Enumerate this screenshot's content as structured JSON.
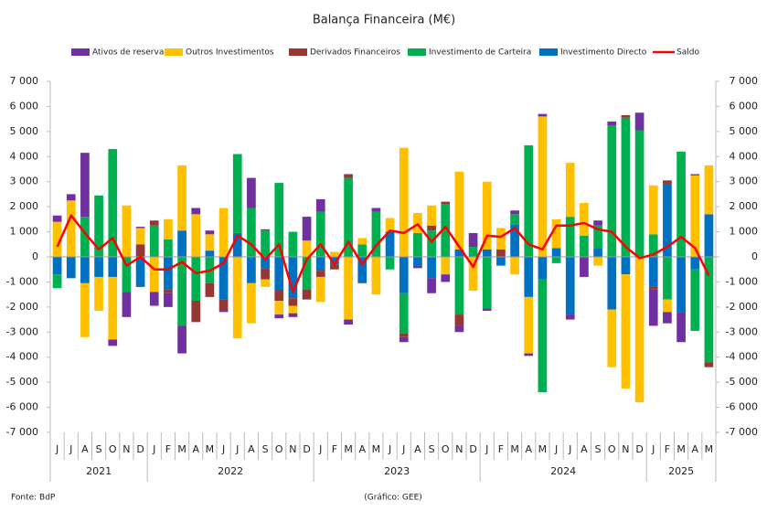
{
  "chart_data": {
    "type": "bar",
    "stacked": true,
    "title": "Balança Financeira (M€)",
    "category_groups": [
      {
        "label": "2021",
        "categories": [
          "J",
          "J",
          "A",
          "S",
          "O",
          "N",
          "D"
        ]
      },
      {
        "label": "2022",
        "categories": [
          "J",
          "F",
          "M",
          "A",
          "M",
          "J",
          "J",
          "A",
          "S",
          "O",
          "N",
          "D"
        ]
      },
      {
        "label": "2023",
        "categories": [
          "J",
          "F",
          "M",
          "A",
          "M",
          "J",
          "J",
          "A",
          "S",
          "O",
          "N",
          "D"
        ]
      },
      {
        "label": "2024",
        "categories": [
          "J",
          "F",
          "M",
          "A",
          "M",
          "J",
          "J",
          "A",
          "S",
          "O",
          "N",
          "D"
        ]
      },
      {
        "label": "2025",
        "categories": [
          "J",
          "F",
          "M",
          "A",
          "M"
        ]
      }
    ],
    "series": [
      {
        "name": "Ativos de reserva",
        "type": "bar",
        "color": "#7030a0",
        "values": [
          250,
          250,
          2550,
          0,
          -250,
          -1000,
          50,
          -550,
          -550,
          -1100,
          250,
          150,
          -50,
          0,
          1200,
          50,
          -150,
          -150,
          950,
          500,
          0,
          -200,
          0,
          150,
          0,
          -200,
          -100,
          -600,
          -300,
          -250,
          550,
          -100,
          0,
          150,
          -100,
          100,
          0,
          -200,
          -800,
          200,
          150,
          0,
          700,
          -1450,
          -450,
          -1200,
          50,
          0
        ]
      },
      {
        "name": "Outros Investimentos",
        "type": "bar",
        "color": "#ffc000",
        "values": [
          1400,
          2250,
          -2150,
          -1350,
          -2500,
          2050,
          650,
          -1400,
          800,
          2600,
          1700,
          650,
          1950,
          -3250,
          -1600,
          -300,
          -550,
          -300,
          650,
          -1000,
          200,
          -2500,
          250,
          -1500,
          550,
          4350,
          800,
          800,
          -700,
          3100,
          -1350,
          2700,
          850,
          -700,
          -2250,
          5600,
          1150,
          2150,
          1300,
          -350,
          -2300,
          -4550,
          -5800,
          1950,
          -500,
          0,
          3250,
          1950
        ]
      },
      {
        "name": "Derivados Financeiros",
        "type": "bar",
        "color": "#953735",
        "values": [
          0,
          0,
          0,
          0,
          0,
          0,
          500,
          200,
          -150,
          0,
          -850,
          -550,
          -450,
          0,
          0,
          -450,
          -400,
          -300,
          -400,
          -250,
          -200,
          150,
          0,
          0,
          0,
          -150,
          0,
          200,
          100,
          -450,
          0,
          0,
          300,
          0,
          0,
          0,
          0,
          0,
          0,
          0,
          0,
          100,
          0,
          -100,
          150,
          0,
          0,
          -200
        ]
      },
      {
        "name": "Investimento de Carteira",
        "type": "bar",
        "color": "#00b050",
        "values": [
          -550,
          0,
          1600,
          2450,
          4300,
          -1400,
          0,
          1250,
          700,
          -2750,
          -1750,
          -1050,
          0,
          3150,
          1950,
          1050,
          2950,
          1000,
          -1300,
          1800,
          0,
          3150,
          500,
          1800,
          -500,
          -1600,
          950,
          1050,
          2100,
          -2300,
          400,
          -2050,
          0,
          400,
          4450,
          -4500,
          -250,
          1600,
          850,
          900,
          5250,
          5550,
          5050,
          900,
          -1700,
          4200,
          -2450,
          -4200
        ]
      },
      {
        "name": "Investimento Directo",
        "type": "bar",
        "color": "#0070c0",
        "values": [
          -700,
          -850,
          -1050,
          -800,
          -800,
          0,
          -1200,
          0,
          -1300,
          1050,
          0,
          250,
          -1700,
          950,
          -1050,
          -450,
          -1350,
          -1650,
          0,
          -550,
          -300,
          0,
          -1050,
          0,
          1000,
          -1450,
          -350,
          -850,
          0,
          300,
          0,
          300,
          -350,
          1300,
          -1600,
          -900,
          350,
          -2300,
          0,
          350,
          -2100,
          -700,
          0,
          -1200,
          2900,
          -2200,
          -500,
          1700
        ]
      },
      {
        "name": "Saldo",
        "type": "line",
        "color": "#ff0000",
        "values": [
          400,
          1650,
          950,
          300,
          750,
          -350,
          0,
          -500,
          -500,
          -200,
          -650,
          -550,
          -250,
          850,
          500,
          -100,
          500,
          -1400,
          -100,
          500,
          -300,
          600,
          -300,
          450,
          1050,
          950,
          1300,
          600,
          1200,
          400,
          -400,
          850,
          800,
          1150,
          500,
          300,
          1250,
          1250,
          1350,
          1100,
          1000,
          400,
          -50,
          100,
          400,
          800,
          350,
          -750
        ]
      }
    ],
    "ylim": [
      -7000,
      7000
    ],
    "yticks": [
      {
        "value": -7000,
        "label": "-7 000"
      },
      {
        "value": -6000,
        "label": "-6 000"
      },
      {
        "value": -5000,
        "label": "-5 000"
      },
      {
        "value": -4000,
        "label": "-4 000"
      },
      {
        "value": -3000,
        "label": "-3 000"
      },
      {
        "value": -2000,
        "label": "-2 000"
      },
      {
        "value": -1000,
        "label": "-1 000"
      },
      0,
      {
        "value": 1000,
        "label": "1 000"
      },
      {
        "value": 2000,
        "label": "2 000"
      },
      {
        "value": 3000,
        "label": "3 000"
      },
      {
        "value": 4000,
        "label": "4 000"
      },
      {
        "value": 5000,
        "label": "5 000"
      },
      {
        "value": 6000,
        "label": "6 000"
      },
      {
        "value": 7000,
        "label": "7 000"
      }
    ],
    "y2lim": [
      -7000,
      7000
    ],
    "y2ticks": [
      {
        "value": -7000,
        "label": "-7 000"
      },
      {
        "value": -6000,
        "label": "-6 000"
      },
      {
        "value": -5000,
        "label": "-5 000"
      },
      {
        "value": -4000,
        "label": "-4 000"
      },
      {
        "value": -3000,
        "label": "-3 000"
      },
      {
        "value": -2000,
        "label": "-2 000"
      },
      {
        "value": -1000,
        "label": "-1 000"
      },
      0,
      {
        "value": 1000,
        "label": "1 000"
      },
      {
        "value": 2000,
        "label": "2 000"
      },
      {
        "value": 3000,
        "label": "3 000"
      },
      {
        "value": 4000,
        "label": "4 000"
      },
      {
        "value": 5000,
        "label": "5 000"
      },
      {
        "value": 6000,
        "label": "6 000"
      },
      {
        "value": 7000,
        "label": "7 000"
      }
    ],
    "grid": false,
    "legend": "top",
    "source": "Fonte: BdP",
    "credit": "(Gráfico: GEE)"
  }
}
